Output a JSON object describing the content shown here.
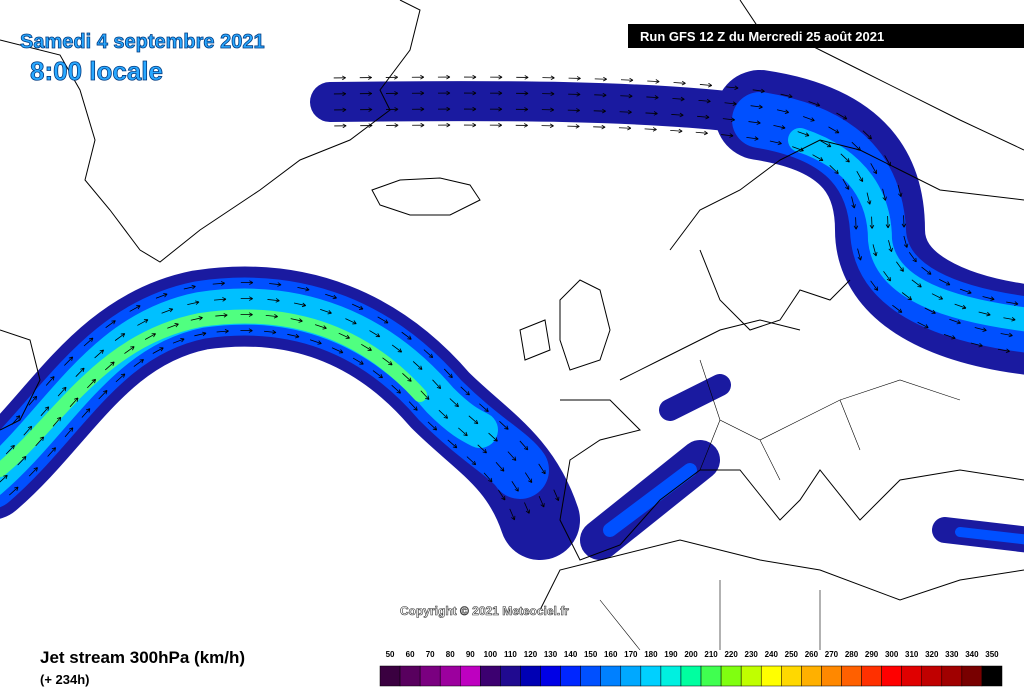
{
  "header": {
    "date": "Samedi 4 septembre 2021",
    "time": "8:00 locale",
    "run": "Run GFS 12 Z du Mercredi 25 août 2021"
  },
  "copyright": "Copyright © 2021 Meteociel.fr",
  "footer": {
    "title": "Jet stream 300hPa (km/h)",
    "lead": "(+ 234h)"
  },
  "legend": {
    "labels": [
      50,
      60,
      70,
      80,
      90,
      100,
      110,
      120,
      130,
      140,
      150,
      160,
      170,
      180,
      190,
      200,
      210,
      220,
      230,
      240,
      250,
      260,
      270,
      280,
      290,
      300,
      310,
      320,
      330,
      340,
      350
    ],
    "colors": [
      "#3a0040",
      "#58005e",
      "#7a0080",
      "#9c009e",
      "#be00c0",
      "#3c0070",
      "#200a90",
      "#0000b4",
      "#0000e6",
      "#0026ff",
      "#0050ff",
      "#0080ff",
      "#00a8ff",
      "#00d0ff",
      "#00f0e0",
      "#00ffa0",
      "#40ff50",
      "#80ff10",
      "#c0ff00",
      "#ffff00",
      "#ffd800",
      "#ffb000",
      "#ff8800",
      "#ff6000",
      "#ff3000",
      "#ff0000",
      "#e00000",
      "#c00000",
      "#a00000",
      "#780000",
      "#000000"
    ]
  }
}
